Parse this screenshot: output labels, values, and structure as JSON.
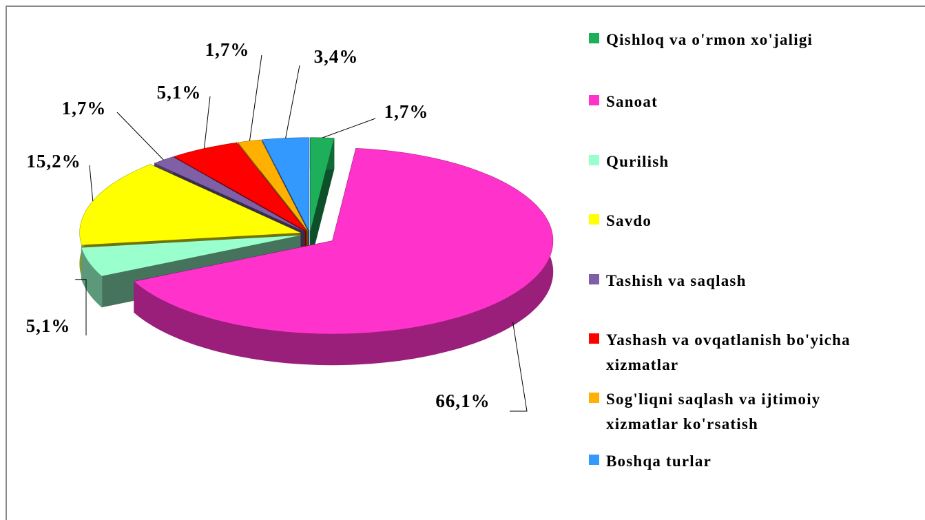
{
  "chart_data": {
    "type": "pie3d",
    "categories": [
      "Qishloq va o'rmon xo'jaligi",
      "Sanoat",
      "Qurilish",
      "Savdo",
      "Tashish va saqlash",
      "Yashash va ovqatlanish bo'yicha xizmatlar",
      "Sog'liqni saqlash va ijtimoiy xizmatlar ko'rsatish",
      "Boshqa turlar"
    ],
    "values": [
      1.7,
      66.1,
      5.1,
      15.2,
      1.7,
      5.1,
      1.7,
      3.4
    ],
    "value_labels": [
      "1,7%",
      "66,1%",
      "5,1%",
      "15,2%",
      "1,7%",
      "5,1%",
      "1,7%",
      "3,4%"
    ],
    "colors": [
      "#1daf5a",
      "#ff33cc",
      "#99ffcc",
      "#ffff00",
      "#7f5fa6",
      "#ff0000",
      "#ffb000",
      "#3399ff"
    ],
    "legend": "right"
  }
}
